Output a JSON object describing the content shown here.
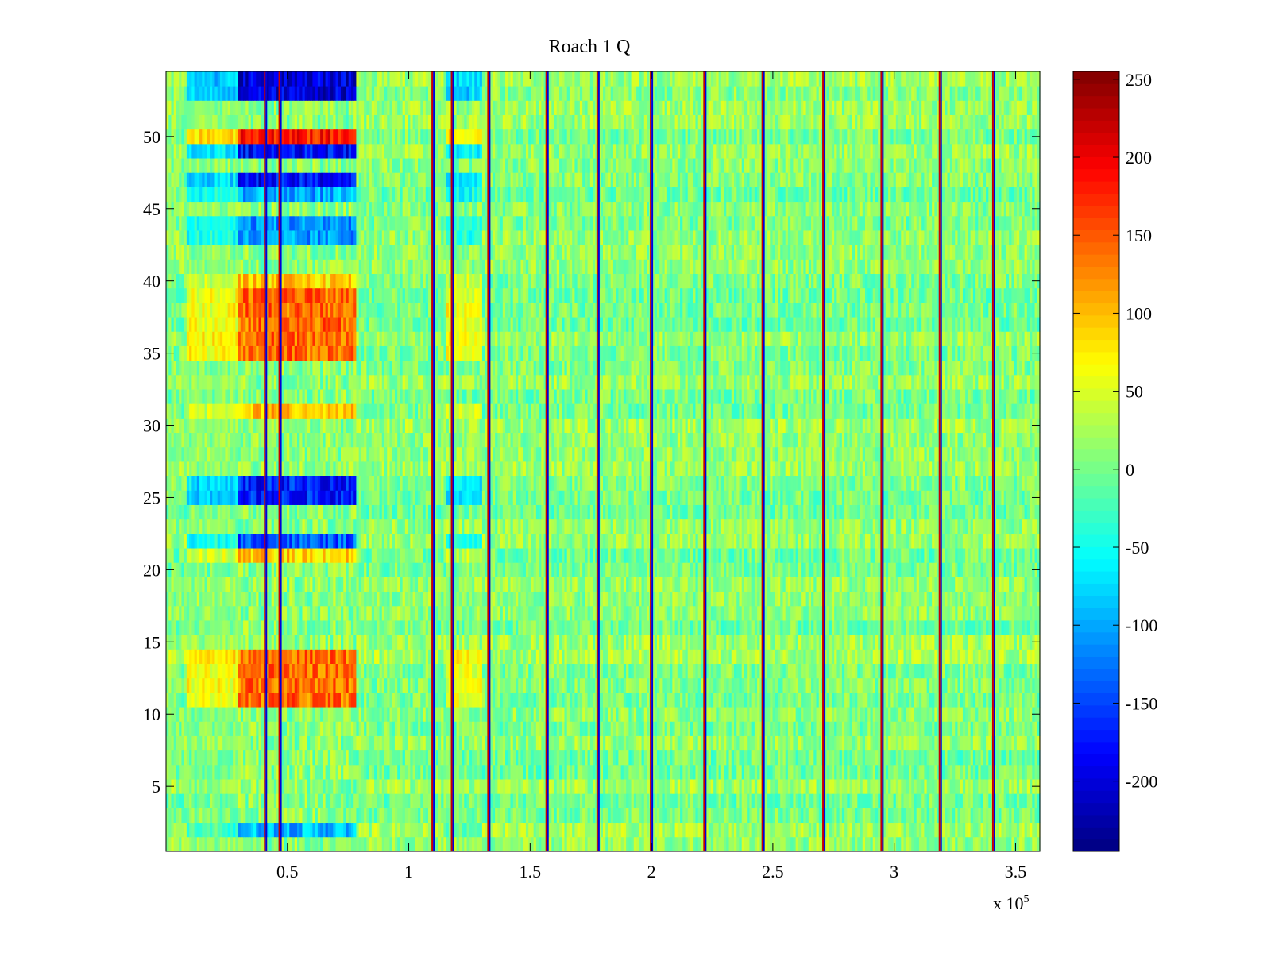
{
  "chart_data": {
    "type": "heatmap",
    "title": "Roach 1 Q",
    "xlabel": "",
    "ylabel": "",
    "xlim": [
      0.5,
      360000
    ],
    "ylim": [
      0.5,
      54.5
    ],
    "x_multiplier_label": "x 10",
    "x_multiplier_exponent": "5",
    "x_ticks": [
      0.5,
      1,
      1.5,
      2,
      2.5,
      3,
      3.5
    ],
    "x_tick_labels": [
      "0.5",
      "1",
      "1.5",
      "2",
      "2.5",
      "3",
      "3.5"
    ],
    "y_ticks": [
      5,
      10,
      15,
      20,
      25,
      30,
      35,
      40,
      45,
      50
    ],
    "y_tick_labels": [
      "5",
      "10",
      "15",
      "20",
      "25",
      "30",
      "35",
      "40",
      "45",
      "50"
    ],
    "rows": 54,
    "colorbar": {
      "colormap": "jet",
      "clim": [
        -245,
        255
      ],
      "ticks": [
        250,
        200,
        150,
        100,
        50,
        0,
        -50,
        -100,
        -150,
        -200
      ],
      "tick_labels": [
        "250",
        "200",
        "150",
        "100",
        "50",
        "0",
        "-50",
        "-100",
        "-150",
        "-200"
      ]
    },
    "background_level": 10,
    "spike_columns_x": [
      41000,
      47000,
      110000,
      118000,
      133000,
      157000,
      178000,
      200000,
      222000,
      246000,
      271000,
      295000,
      319000,
      341000
    ],
    "active_region": {
      "x_range": [
        0,
        78000
      ],
      "row_values": [
        {
          "rows": [
            53,
            54
          ],
          "value": -200
        },
        {
          "rows": [
            50,
            50
          ],
          "value": 180
        },
        {
          "rows": [
            49,
            49
          ],
          "value": -180
        },
        {
          "rows": [
            47,
            47
          ],
          "value": -180
        },
        {
          "rows": [
            46,
            46
          ],
          "value": -100
        },
        {
          "rows": [
            43,
            44
          ],
          "value": -110
        },
        {
          "rows": [
            40,
            40
          ],
          "value": 90
        },
        {
          "rows": [
            35,
            39
          ],
          "value": 140
        },
        {
          "rows": [
            31,
            31
          ],
          "value": 100
        },
        {
          "rows": [
            25,
            26
          ],
          "value": -170
        },
        {
          "rows": [
            22,
            22
          ],
          "value": -140
        },
        {
          "rows": [
            21,
            21
          ],
          "value": 90
        },
        {
          "rows": [
            11,
            14
          ],
          "value": 140
        },
        {
          "rows": [
            2,
            2
          ],
          "value": -90
        }
      ]
    }
  }
}
